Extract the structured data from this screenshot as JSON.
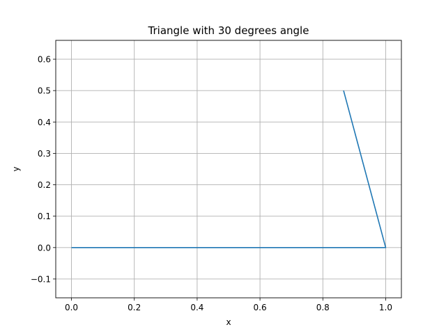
{
  "chart_data": {
    "type": "line",
    "title": "Triangle with 30 degrees angle",
    "xlabel": "x",
    "ylabel": "y",
    "xlim": [
      -0.05,
      1.05
    ],
    "ylim": [
      -0.16,
      0.66
    ],
    "x_ticks": [
      0.0,
      0.2,
      0.4,
      0.6,
      0.8,
      1.0
    ],
    "x_tick_labels": [
      "0.0",
      "0.2",
      "0.4",
      "0.6",
      "0.8",
      "1.0"
    ],
    "y_ticks": [
      -0.1,
      0.0,
      0.1,
      0.2,
      0.3,
      0.4,
      0.5,
      0.6
    ],
    "y_tick_labels": [
      "−0.1",
      "0.0",
      "0.1",
      "0.2",
      "0.3",
      "0.4",
      "0.5",
      "0.6"
    ],
    "grid": true,
    "series": [
      {
        "x": [
          0.0,
          1.0,
          0.866
        ],
        "y": [
          0.0,
          0.0,
          0.5
        ],
        "color": "#1f77b4"
      }
    ]
  }
}
